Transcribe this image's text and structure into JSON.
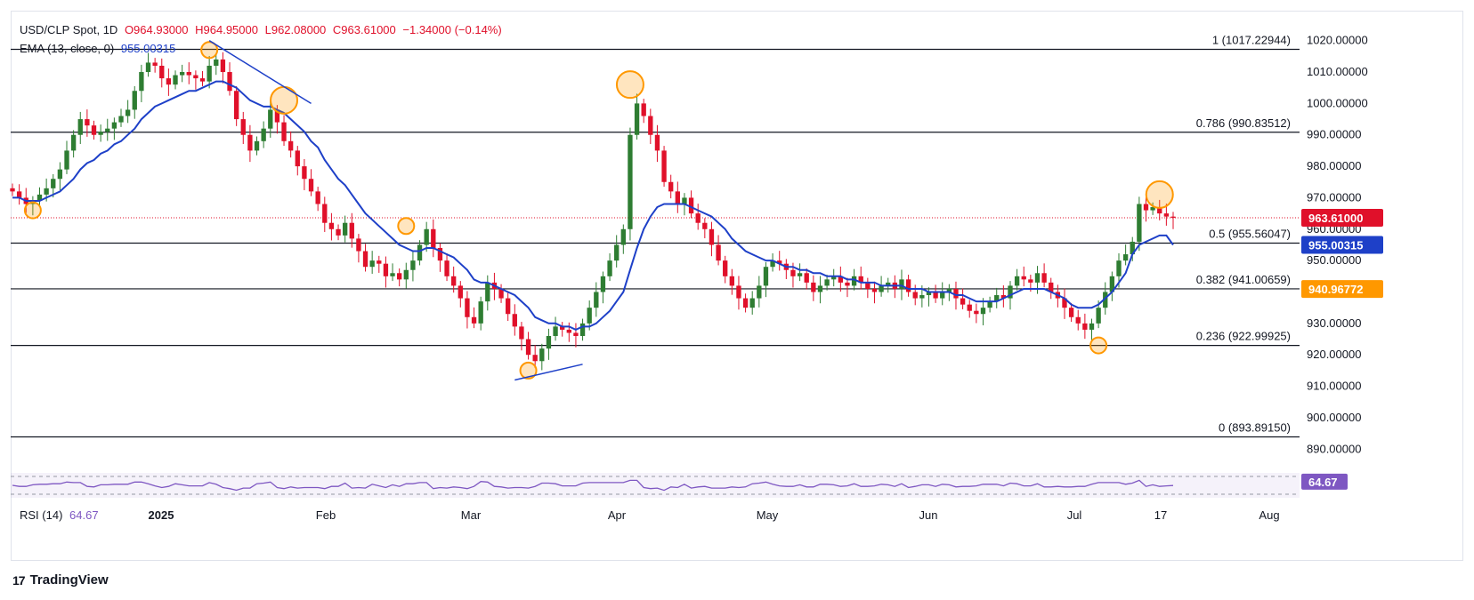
{
  "legend": {
    "symbol": "USD/CLP Spot, 1D",
    "open": "O964.93000",
    "high": "H964.95000",
    "low": "L962.08000",
    "close": "C963.61000",
    "change": "−1.34000 (−0.14%)",
    "ema_label": "EMA (13, close, 0)",
    "ema_value": "955.00315",
    "rsi_label": "RSI (14)",
    "rsi_value": "64.67"
  },
  "footer": {
    "brand": "TradingView",
    "logo": "17"
  },
  "colors": {
    "up": "#26a69a",
    "up_body": "#2e7d32",
    "down": "#e0102a",
    "ema": "#1e40c8",
    "rsi": "#7e57c2",
    "fib": "#131722",
    "marker": "#ff9800"
  },
  "chart_data": {
    "type": "candlestick",
    "title": "USD/CLP Spot, 1D",
    "y_axis_ticks": [
      890,
      900,
      910,
      920,
      930,
      940,
      950,
      960,
      970,
      980,
      990,
      1000,
      1010,
      1020
    ],
    "y_tick_labels": [
      "890.00000",
      "900.00000",
      "910.00000",
      "920.00000",
      "930.00000",
      "940.00000",
      "950.00000",
      "960.00000",
      "970.00000",
      "980.00000",
      "990.00000",
      "1000.00000",
      "1010.00000",
      "1020.00000"
    ],
    "ylim": [
      883,
      1025
    ],
    "x_axis_labels": [
      "2025",
      "Feb",
      "Mar",
      "Apr",
      "May",
      "Jun",
      "Jul",
      "17",
      "Aug"
    ],
    "fib_levels": [
      {
        "label": "1 (1017.22944)",
        "value": 1017.22944
      },
      {
        "label": "0.786 (990.83512)",
        "value": 990.83512
      },
      {
        "label": "0.5 (955.56047)",
        "value": 955.56047
      },
      {
        "label": "0.382 (941.00659)",
        "value": 941.00659
      },
      {
        "label": "0.236 (922.99925)",
        "value": 922.99925
      },
      {
        "label": "0 (893.89150)",
        "value": 893.8915
      }
    ],
    "price_tags": [
      {
        "text": "963.61000",
        "value": 963.61,
        "color": "#e0102a"
      },
      {
        "text": "955.00315",
        "value": 955.00315,
        "color": "#1e40c8"
      },
      {
        "text": "940.96772",
        "value": 940.96772,
        "color": "#ff9800"
      }
    ],
    "close_series": [
      972,
      970,
      968,
      969,
      971,
      973,
      976,
      979,
      985,
      990,
      995,
      993,
      990,
      991,
      992,
      994,
      996,
      998,
      1004,
      1010,
      1013,
      1012,
      1008,
      1006,
      1009,
      1010,
      1009,
      1008,
      1007,
      1012,
      1014,
      1010,
      1004,
      995,
      990,
      985,
      988,
      992,
      998,
      994,
      988,
      985,
      980,
      976,
      972,
      968,
      962,
      960,
      958,
      962,
      957,
      953,
      948,
      950,
      949,
      945,
      946,
      944,
      947,
      950,
      955,
      960,
      954,
      950,
      945,
      942,
      938,
      932,
      930,
      937,
      943,
      941,
      938,
      933,
      929,
      925,
      920,
      918,
      922,
      926,
      929,
      928,
      927,
      926,
      930,
      935,
      940,
      945,
      950,
      955,
      960,
      990,
      1000,
      996,
      990,
      985,
      975,
      972,
      968,
      970,
      965,
      962,
      960,
      955,
      950,
      945,
      942,
      938,
      935,
      938,
      942,
      948,
      950,
      949,
      947,
      945,
      946,
      943,
      940,
      942,
      944,
      945,
      943,
      942,
      945,
      943,
      941,
      940,
      942,
      943,
      941,
      944,
      940,
      938,
      939,
      940,
      938,
      940,
      941,
      938,
      936,
      934,
      933,
      935,
      937,
      939,
      938,
      942,
      945,
      944,
      943,
      946,
      943,
      940,
      938,
      935,
      932,
      930,
      928,
      930,
      935,
      940,
      945,
      950,
      952,
      956,
      968,
      966,
      967,
      965,
      964,
      963.61
    ],
    "ema_13_series": [
      970,
      970,
      969,
      969,
      969,
      970,
      971,
      972,
      974,
      976,
      979,
      981,
      982,
      984,
      985,
      987,
      988,
      990,
      992,
      995,
      997,
      999,
      1000,
      1001,
      1002,
      1003,
      1004,
      1004,
      1005,
      1006,
      1007,
      1007,
      1006,
      1005,
      1003,
      1001,
      1000,
      999,
      999,
      998,
      997,
      995,
      993,
      991,
      988,
      986,
      982,
      979,
      976,
      974,
      971,
      968,
      965,
      963,
      961,
      959,
      957,
      955,
      954,
      953,
      953,
      954,
      954,
      953,
      952,
      951,
      949,
      947,
      944,
      943,
      943,
      942,
      941,
      940,
      939,
      937,
      935,
      932,
      931,
      930,
      930,
      929,
      929,
      928,
      929,
      929,
      930,
      932,
      934,
      937,
      940,
      947,
      954,
      960,
      964,
      967,
      968,
      968,
      968,
      968,
      967,
      966,
      965,
      964,
      962,
      960,
      957,
      955,
      953,
      952,
      951,
      950,
      950,
      949,
      948,
      948,
      947,
      947,
      946,
      946,
      945,
      945,
      945,
      944,
      944,
      943,
      943,
      943,
      942,
      942,
      942,
      942,
      941,
      941,
      941,
      940,
      940,
      940,
      940,
      939,
      939,
      938,
      937,
      937,
      937,
      937,
      938,
      939,
      940,
      941,
      941,
      941,
      941,
      940,
      939,
      938,
      936,
      935,
      935,
      935,
      936,
      938,
      940,
      943,
      946,
      952,
      955,
      956,
      957,
      958,
      958,
      955.00315
    ],
    "rsi_14": {
      "value": 64.67,
      "upper": 70,
      "lower": 30,
      "ylim": [
        0,
        100
      ]
    },
    "markers": [
      {
        "note": "swing low",
        "index": 3,
        "value": 966
      },
      {
        "note": "swing high",
        "index": 29,
        "value": 1017
      },
      {
        "note": "swing high",
        "index": 40,
        "value": 1001
      },
      {
        "note": "swing high",
        "index": 58,
        "value": 961
      },
      {
        "note": "swing low",
        "index": 76,
        "value": 915
      },
      {
        "note": "swing high",
        "index": 91,
        "value": 1006
      },
      {
        "note": "swing low",
        "index": 160,
        "value": 923
      },
      {
        "note": "swing high",
        "index": 169,
        "value": 971
      }
    ]
  }
}
